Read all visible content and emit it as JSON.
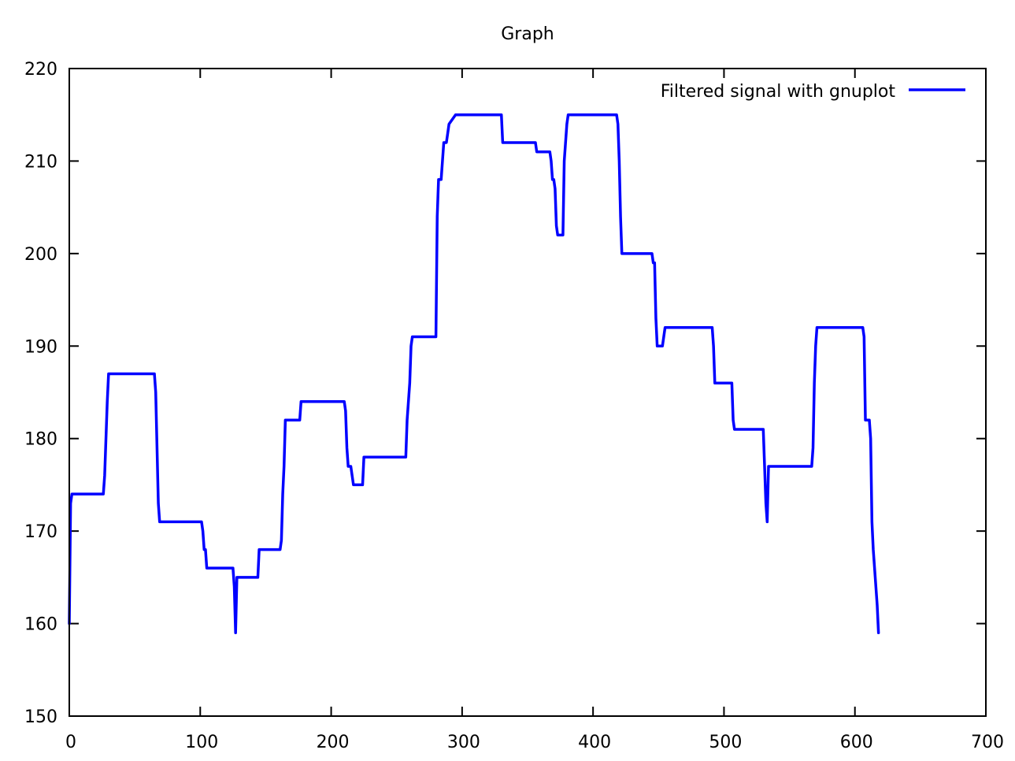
{
  "chart_data": {
    "type": "line",
    "title": "Graph",
    "xlabel": "",
    "ylabel": "",
    "xlim": [
      0,
      700
    ],
    "ylim": [
      150,
      220
    ],
    "xticks": [
      0,
      100,
      200,
      300,
      400,
      500,
      600,
      700
    ],
    "yticks": [
      150,
      160,
      170,
      180,
      190,
      200,
      210,
      220
    ],
    "xtick_labels": [
      "0",
      "100",
      "200",
      "300",
      "400",
      "500",
      "600",
      "700"
    ],
    "ytick_labels": [
      "150",
      "160",
      "170",
      "180",
      "190",
      "200",
      "210",
      "220"
    ],
    "grid": false,
    "legend_position": "top-right",
    "series": [
      {
        "name": "Filtered signal with gnuplot",
        "color": "#0000ff",
        "x": [
          0,
          1,
          2,
          3,
          26,
          27,
          29,
          30,
          65,
          66,
          68,
          69,
          101,
          102,
          103,
          104,
          105,
          125,
          126,
          127,
          128,
          129,
          144,
          145,
          146,
          161,
          162,
          163,
          164,
          165,
          166,
          176,
          177,
          210,
          211,
          212,
          213,
          215,
          216,
          217,
          224,
          225,
          226,
          257,
          258,
          259,
          260,
          261,
          262,
          280,
          281,
          282,
          284,
          285,
          286,
          288,
          289,
          290,
          295,
          296,
          330,
          331,
          356,
          357,
          367,
          368,
          369,
          370,
          371,
          372,
          373,
          377,
          378,
          380,
          381,
          418,
          419,
          420,
          421,
          422,
          445,
          446,
          447,
          448,
          449,
          450,
          453,
          454,
          455,
          491,
          492,
          493,
          494,
          506,
          507,
          508,
          530,
          531,
          532,
          533,
          534,
          535,
          567,
          568,
          569,
          570,
          571,
          606,
          607,
          608,
          611,
          612,
          613,
          614,
          617,
          618
        ],
        "values": [
          160,
          173,
          174,
          174,
          174,
          176,
          184,
          187,
          187,
          185,
          173,
          171,
          171,
          170,
          168,
          168,
          166,
          166,
          164,
          159,
          165,
          165,
          165,
          168,
          168,
          168,
          169,
          174,
          177,
          182,
          182,
          182,
          184,
          184,
          183,
          179,
          177,
          177,
          176,
          175,
          175,
          178,
          178,
          178,
          182,
          184,
          186,
          190,
          191,
          191,
          204,
          208,
          208,
          210,
          212,
          212,
          213,
          214,
          215,
          215,
          215,
          212,
          212,
          211,
          211,
          210,
          208,
          208,
          207,
          203,
          202,
          202,
          210,
          214,
          215,
          215,
          214,
          210,
          204,
          200,
          200,
          199,
          199,
          193,
          190,
          190,
          190,
          191,
          192,
          192,
          190,
          186,
          186,
          186,
          182,
          181,
          181,
          177,
          173,
          171,
          177,
          177,
          177,
          179,
          186,
          190,
          192,
          192,
          191,
          182,
          182,
          180,
          171,
          168,
          162,
          159
        ]
      }
    ]
  }
}
